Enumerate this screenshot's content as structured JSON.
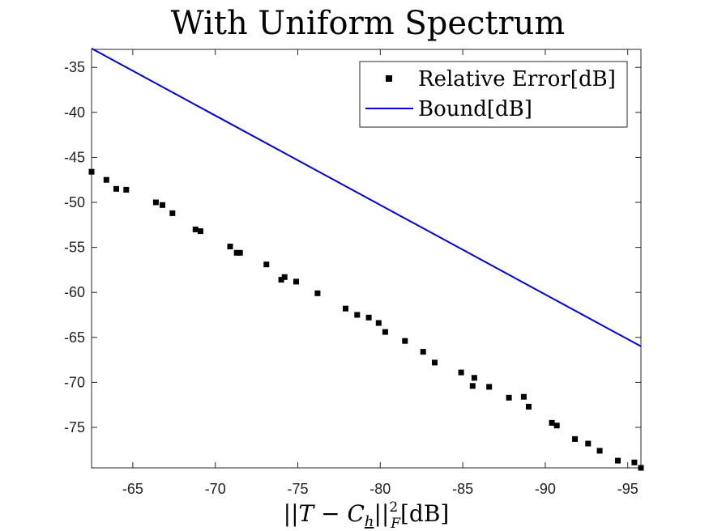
{
  "chart_data": {
    "type": "scatter",
    "title": "With Uniform Spectrum",
    "xlabel": {
      "prefix": "||",
      "T": "T",
      "minus": " − ",
      "C": "C",
      "sub": "h",
      "close": "||",
      "sup": "2",
      "subF": "F",
      "unit": "[dB]"
    },
    "ylabel": "",
    "xlim": [
      -62.5,
      -95.8
    ],
    "ylim": [
      -79.5,
      -33
    ],
    "x_reversed": true,
    "grid": false,
    "legend_position": "top-right",
    "xticks": [
      -65,
      -70,
      -75,
      -80,
      -85,
      -90,
      -95
    ],
    "yticks": [
      -35,
      -40,
      -45,
      -50,
      -55,
      -60,
      -65,
      -70,
      -75
    ],
    "series": [
      {
        "name": "Relative Error[dB]",
        "kind": "scatter",
        "marker": "square",
        "color": "#000000",
        "points": [
          [
            -62.5,
            -46.6
          ],
          [
            -63.4,
            -47.5
          ],
          [
            -64.0,
            -48.5
          ],
          [
            -64.6,
            -48.6
          ],
          [
            -66.4,
            -50.0
          ],
          [
            -66.8,
            -50.3
          ],
          [
            -67.4,
            -51.2
          ],
          [
            -68.8,
            -53.0
          ],
          [
            -69.1,
            -53.2
          ],
          [
            -70.9,
            -54.9
          ],
          [
            -71.3,
            -55.6
          ],
          [
            -71.5,
            -55.6
          ],
          [
            -73.1,
            -56.9
          ],
          [
            -74.0,
            -58.6
          ],
          [
            -74.2,
            -58.3
          ],
          [
            -74.9,
            -58.8
          ],
          [
            -76.2,
            -60.1
          ],
          [
            -77.9,
            -61.8
          ],
          [
            -78.6,
            -62.5
          ],
          [
            -79.3,
            -62.8
          ],
          [
            -79.9,
            -63.4
          ],
          [
            -80.3,
            -64.4
          ],
          [
            -81.5,
            -65.4
          ],
          [
            -82.6,
            -66.6
          ],
          [
            -83.3,
            -67.8
          ],
          [
            -84.9,
            -68.9
          ],
          [
            -85.6,
            -70.4
          ],
          [
            -85.7,
            -69.5
          ],
          [
            -86.6,
            -70.5
          ],
          [
            -87.8,
            -71.7
          ],
          [
            -88.7,
            -71.6
          ],
          [
            -89.0,
            -72.7
          ],
          [
            -90.4,
            -74.5
          ],
          [
            -90.7,
            -74.8
          ],
          [
            -91.8,
            -76.3
          ],
          [
            -92.6,
            -76.8
          ],
          [
            -93.3,
            -77.6
          ],
          [
            -94.4,
            -78.7
          ],
          [
            -95.4,
            -78.9
          ],
          [
            -95.8,
            -79.5
          ]
        ]
      },
      {
        "name": "Bound[dB]",
        "kind": "line",
        "color": "#0000e6",
        "points": [
          [
            -62.5,
            -32.9
          ],
          [
            -95.8,
            -66.0
          ]
        ]
      }
    ]
  }
}
